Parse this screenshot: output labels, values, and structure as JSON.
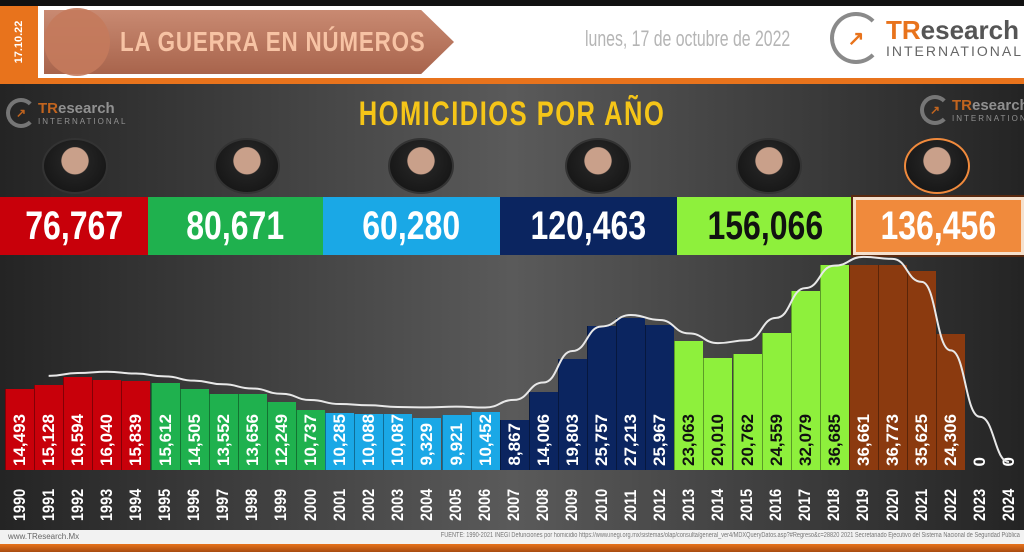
{
  "header": {
    "date_tab": "17.10.22",
    "banner_title": "LA GUERRA EN NÚMEROS",
    "date_text": "lunes, 17 de octubre de 2022",
    "logo": {
      "brand_a": "TR",
      "brand_b": "esearch",
      "sub": "INTERNATIONAL"
    }
  },
  "presidents": [
    {
      "total": "76,767",
      "color": "#c8000a",
      "text": "#ffffff"
    },
    {
      "total": "80,671",
      "color": "#1fb14e",
      "text": "#ffffff"
    },
    {
      "total": "60,280",
      "color": "#1aa8e6",
      "text": "#ffffff"
    },
    {
      "total": "120,463",
      "color": "#0b2560",
      "text": "#ffffff"
    },
    {
      "total": "156,066",
      "color": "#8ef03c",
      "text": "#111111"
    },
    {
      "total": "136,456",
      "color": "#f08a3c",
      "text": "#ffffff"
    }
  ],
  "footer": {
    "website": "www.TResearch.Mx",
    "source": "FUENTE: 1990-2021 INEGI Defunciones por homicidio https://www.inegi.org.mx/sistemas/olap/consulta/general_ver4/MDXQueryDatos.asp?#Regreso&c=28820   2021 Secretariado Ejecutivo del Sistema Nacional de Seguridad Pública"
  },
  "chart_data": {
    "type": "bar",
    "title": "HOMICIDIOS POR AÑO",
    "xlabel": "",
    "ylabel": "",
    "ylim": [
      0,
      37000
    ],
    "categories": [
      "1990",
      "1991",
      "1992",
      "1993",
      "1994",
      "1995",
      "1996",
      "1997",
      "1998",
      "1999",
      "2000",
      "2001",
      "2002",
      "2003",
      "2004",
      "2005",
      "2006",
      "2007",
      "2008",
      "2009",
      "2010",
      "2011",
      "2012",
      "2013",
      "2014",
      "2015",
      "2016",
      "2017",
      "2018",
      "2019",
      "2020",
      "2021",
      "2022",
      "2023",
      "2024"
    ],
    "values": [
      14493,
      15128,
      16594,
      16040,
      15839,
      15612,
      14505,
      13552,
      13656,
      12249,
      10737,
      10285,
      10088,
      10087,
      9329,
      9921,
      10452,
      8867,
      14006,
      19803,
      25757,
      27213,
      25967,
      23063,
      20010,
      20762,
      24559,
      32079,
      36685,
      36661,
      36773,
      35625,
      24306,
      0,
      0
    ],
    "labels": [
      "14,493",
      "15,128",
      "16,594",
      "16,040",
      "15,839",
      "15,612",
      "14,505",
      "13,552",
      "13,656",
      "12,249",
      "10,737",
      "10,285",
      "10,088",
      "10,087",
      "9,329",
      "9,921",
      "10,452",
      "8,867",
      "14,006",
      "19,803",
      "25,757",
      "27,213",
      "25,967",
      "23,063",
      "20,010",
      "20,762",
      "24,559",
      "32,079",
      "36,685",
      "36,661",
      "36,773",
      "35,625",
      "24,306",
      "0",
      "0"
    ],
    "term_colors": {
      "1990": "#c8000a",
      "1995": "#1fb14e",
      "2001": "#1aa8e6",
      "2007": "#0b2560",
      "2013": "#8ef03c",
      "2019": "#8b3a0f"
    },
    "trendline": true,
    "grid": false
  }
}
